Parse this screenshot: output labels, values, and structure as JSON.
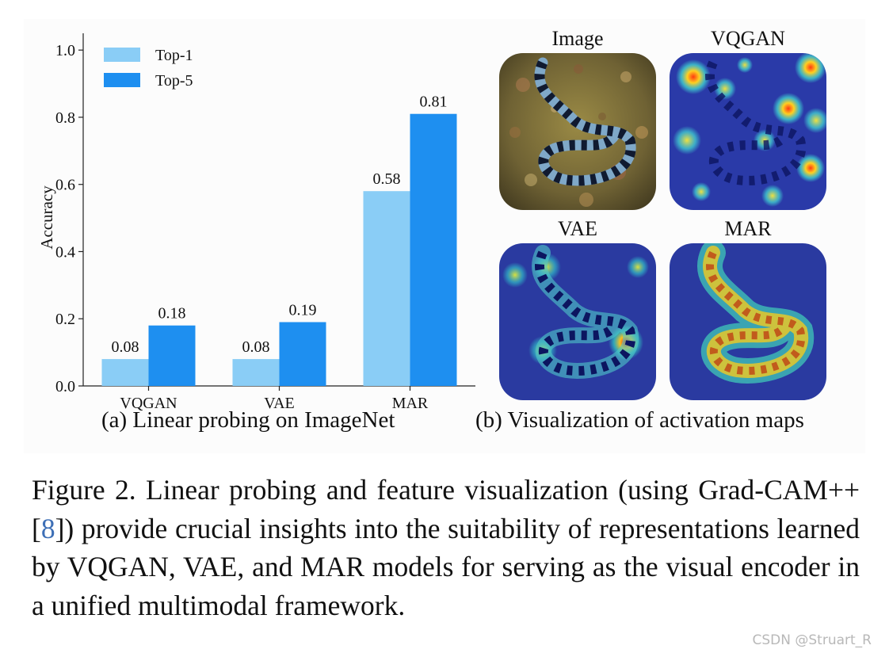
{
  "figure": {
    "subcaption_a": "(a) Linear probing on ImageNet",
    "subcaption_b": "(b) Visualization of activation maps",
    "thumbnails": [
      {
        "label": "Image",
        "kind": "photo"
      },
      {
        "label": "VQGAN",
        "kind": "heat-vqgan"
      },
      {
        "label": "VAE",
        "kind": "heat-vae"
      },
      {
        "label": "MAR",
        "kind": "heat-mar"
      }
    ]
  },
  "chart_data": {
    "type": "bar",
    "categories": [
      "VQGAN",
      "VAE",
      "MAR"
    ],
    "series": [
      {
        "name": "Top-1",
        "values": [
          0.08,
          0.08,
          0.58
        ],
        "labels": [
          "0.08",
          "0.08",
          "0.58"
        ],
        "color": "#8acdf6"
      },
      {
        "name": "Top-5",
        "values": [
          0.18,
          0.19,
          0.81
        ],
        "labels": [
          "0.18",
          "0.19",
          "0.81"
        ],
        "color": "#1e8ff0"
      }
    ],
    "ylabel": "Accuracy",
    "xlabel": "",
    "ylim": [
      0,
      1.05
    ],
    "yticks": [
      0.0,
      0.2,
      0.4,
      0.6,
      0.8,
      1.0
    ],
    "ytick_labels": [
      "0.0",
      "0.2",
      "0.4",
      "0.6",
      "0.8",
      "1.0"
    ],
    "legend_position": "top-left",
    "grid": false
  },
  "caption": {
    "text_before_ref": "Figure 2.  Linear probing and feature visualization (using Grad-CAM++ [",
    "ref": "8",
    "text_after_ref": "]) provide crucial insights into the suitability of representations learned by VQGAN, VAE, and MAR models for serving as the visual encoder in a unified multimodal framework."
  },
  "watermark": "CSDN @Struart_R"
}
